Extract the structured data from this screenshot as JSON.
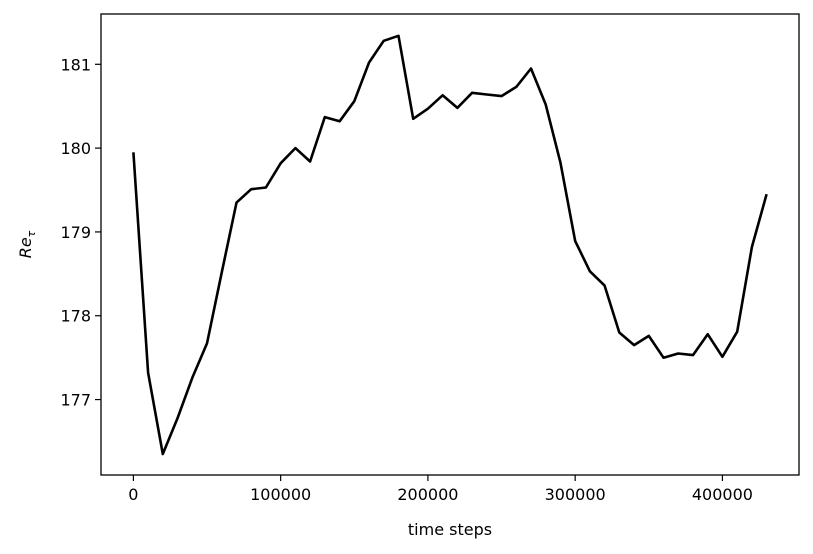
{
  "chart_data": {
    "type": "line",
    "title": "",
    "xlabel": "time steps",
    "ylabel": {
      "base": "Re",
      "sub": "τ"
    },
    "xlim": [
      -22000,
      452000
    ],
    "ylim": [
      176.1,
      181.6
    ],
    "xticks": [
      0,
      100000,
      200000,
      300000,
      400000
    ],
    "yticks": [
      177,
      178,
      179,
      180,
      181
    ],
    "grid": false,
    "legend": "none",
    "line_color": "#000000",
    "series": [
      {
        "x": [
          0,
          10000,
          20000,
          30000,
          40000,
          50000,
          60000,
          70000,
          80000,
          90000,
          100000,
          110000,
          120000,
          130000,
          140000,
          150000,
          160000,
          170000,
          180000,
          190000,
          200000,
          210000,
          220000,
          230000,
          240000,
          250000,
          260000,
          270000,
          280000,
          290000,
          300000,
          310000,
          320000,
          330000,
          340000,
          350000,
          360000,
          370000,
          380000,
          390000,
          400000,
          410000,
          420000,
          430000
        ],
        "values": [
          179.95,
          177.32,
          176.35,
          176.78,
          177.26,
          177.67,
          178.52,
          179.35,
          179.51,
          179.53,
          179.82,
          180.0,
          179.84,
          180.37,
          180.32,
          180.56,
          181.02,
          181.28,
          181.34,
          180.35,
          180.47,
          180.63,
          180.48,
          180.66,
          180.64,
          180.62,
          180.73,
          180.95,
          180.52,
          179.83,
          178.89,
          178.53,
          178.36,
          177.8,
          177.65,
          177.76,
          177.5,
          177.55,
          177.53,
          177.78,
          177.51,
          177.81,
          178.82,
          179.45
        ]
      }
    ]
  }
}
